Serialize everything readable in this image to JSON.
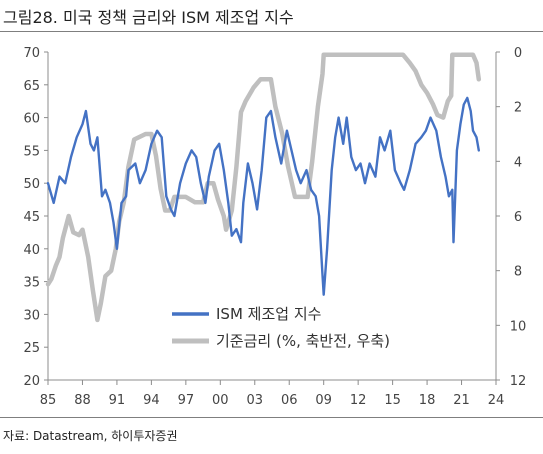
{
  "title": "그림28. 미국 정책 금리와 ISM 제조업 지수",
  "source": "자료: Datastream, 하이투자증권",
  "chart_data": {
    "type": "line",
    "title": "그림28. 미국 정책 금리와 ISM 제조업 지수",
    "x_tick_labels": [
      "85",
      "88",
      "91",
      "94",
      "97",
      "00",
      "03",
      "06",
      "09",
      "12",
      "15",
      "18",
      "21",
      "24"
    ],
    "x_ticks": [
      1985,
      1988,
      1991,
      1994,
      1997,
      2000,
      2003,
      2006,
      2009,
      2012,
      2015,
      2018,
      2021,
      2024
    ],
    "xlim": [
      1985,
      2024
    ],
    "y_left": {
      "lim": [
        20,
        70
      ],
      "ticks": [
        20,
        25,
        30,
        35,
        40,
        45,
        50,
        55,
        60,
        65,
        70
      ]
    },
    "y_right": {
      "lim": [
        12,
        0
      ],
      "inverted": true,
      "ticks": [
        0,
        2,
        4,
        6,
        8,
        10,
        12
      ]
    },
    "legend_position": "center",
    "colors": {
      "ism": "#4472c4",
      "rate": "#bfbfbf"
    },
    "series": [
      {
        "name": "ISM 제조업 지수",
        "axis": "left",
        "points": [
          [
            1985.0,
            50
          ],
          [
            1985.5,
            47
          ],
          [
            1986.0,
            51
          ],
          [
            1986.5,
            50
          ],
          [
            1987.0,
            54
          ],
          [
            1987.5,
            57
          ],
          [
            1988.0,
            59
          ],
          [
            1988.3,
            61
          ],
          [
            1988.7,
            56
          ],
          [
            1989.0,
            55
          ],
          [
            1989.3,
            57
          ],
          [
            1989.7,
            48
          ],
          [
            1990.0,
            49
          ],
          [
            1990.4,
            47
          ],
          [
            1990.7,
            44
          ],
          [
            1991.0,
            40
          ],
          [
            1991.4,
            47
          ],
          [
            1991.8,
            48
          ],
          [
            1992.0,
            52
          ],
          [
            1992.6,
            53
          ],
          [
            1993.0,
            50
          ],
          [
            1993.5,
            52
          ],
          [
            1994.0,
            56
          ],
          [
            1994.5,
            58
          ],
          [
            1994.9,
            57
          ],
          [
            1995.3,
            48
          ],
          [
            1995.7,
            46
          ],
          [
            1996.0,
            45
          ],
          [
            1996.5,
            50
          ],
          [
            1997.0,
            53
          ],
          [
            1997.5,
            55
          ],
          [
            1997.9,
            54
          ],
          [
            1998.3,
            50
          ],
          [
            1998.7,
            47
          ],
          [
            1999.0,
            51
          ],
          [
            1999.5,
            55
          ],
          [
            1999.9,
            56
          ],
          [
            2000.3,
            52
          ],
          [
            2000.7,
            47
          ],
          [
            2001.0,
            42
          ],
          [
            2001.4,
            43
          ],
          [
            2001.8,
            41
          ],
          [
            2002.0,
            47
          ],
          [
            2002.4,
            53
          ],
          [
            2002.8,
            50
          ],
          [
            2003.2,
            46
          ],
          [
            2003.6,
            52
          ],
          [
            2004.0,
            60
          ],
          [
            2004.4,
            61
          ],
          [
            2004.8,
            57
          ],
          [
            2005.3,
            53
          ],
          [
            2005.8,
            58
          ],
          [
            2006.2,
            55
          ],
          [
            2006.6,
            52
          ],
          [
            2007.0,
            50
          ],
          [
            2007.5,
            52
          ],
          [
            2007.9,
            49
          ],
          [
            2008.3,
            48
          ],
          [
            2008.6,
            45
          ],
          [
            2008.9,
            36
          ],
          [
            2009.0,
            33
          ],
          [
            2009.3,
            40
          ],
          [
            2009.7,
            52
          ],
          [
            2010.0,
            57
          ],
          [
            2010.3,
            60
          ],
          [
            2010.7,
            56
          ],
          [
            2011.0,
            60
          ],
          [
            2011.4,
            54
          ],
          [
            2011.8,
            52
          ],
          [
            2012.2,
            53
          ],
          [
            2012.6,
            50
          ],
          [
            2013.0,
            53
          ],
          [
            2013.5,
            51
          ],
          [
            2013.9,
            57
          ],
          [
            2014.3,
            55
          ],
          [
            2014.8,
            58
          ],
          [
            2015.2,
            52
          ],
          [
            2015.7,
            50
          ],
          [
            2016.0,
            49
          ],
          [
            2016.5,
            52
          ],
          [
            2017.0,
            56
          ],
          [
            2017.5,
            57
          ],
          [
            2017.9,
            58
          ],
          [
            2018.3,
            60
          ],
          [
            2018.8,
            58
          ],
          [
            2019.2,
            54
          ],
          [
            2019.6,
            51
          ],
          [
            2019.9,
            48
          ],
          [
            2020.2,
            49
          ],
          [
            2020.3,
            41
          ],
          [
            2020.6,
            55
          ],
          [
            2020.9,
            59
          ],
          [
            2021.2,
            62
          ],
          [
            2021.5,
            63
          ],
          [
            2021.8,
            61
          ],
          [
            2022.0,
            58
          ],
          [
            2022.3,
            57
          ],
          [
            2022.5,
            55
          ]
        ]
      },
      {
        "name": "기준금리 (%, 축반전, 우축)",
        "axis": "right",
        "points": [
          [
            1985.0,
            8.5
          ],
          [
            1985.3,
            8.3
          ],
          [
            1985.7,
            7.8
          ],
          [
            1986.0,
            7.5
          ],
          [
            1986.3,
            6.8
          ],
          [
            1986.8,
            6.0
          ],
          [
            1987.2,
            6.6
          ],
          [
            1987.7,
            6.7
          ],
          [
            1988.0,
            6.5
          ],
          [
            1988.5,
            7.5
          ],
          [
            1988.9,
            8.7
          ],
          [
            1989.3,
            9.8
          ],
          [
            1989.6,
            9.2
          ],
          [
            1990.0,
            8.2
          ],
          [
            1990.5,
            8.0
          ],
          [
            1990.9,
            7.2
          ],
          [
            1991.2,
            6.2
          ],
          [
            1991.6,
            5.5
          ],
          [
            1992.0,
            4.2
          ],
          [
            1992.5,
            3.2
          ],
          [
            1993.5,
            3.0
          ],
          [
            1994.0,
            3.0
          ],
          [
            1994.4,
            3.8
          ],
          [
            1994.8,
            5.0
          ],
          [
            1995.2,
            5.8
          ],
          [
            1995.6,
            5.8
          ],
          [
            1996.0,
            5.3
          ],
          [
            1996.5,
            5.3
          ],
          [
            1997.0,
            5.3
          ],
          [
            1997.8,
            5.5
          ],
          [
            1998.5,
            5.5
          ],
          [
            1998.9,
            4.8
          ],
          [
            1999.4,
            4.8
          ],
          [
            1999.8,
            5.4
          ],
          [
            2000.3,
            6.0
          ],
          [
            2000.5,
            6.5
          ],
          [
            2001.0,
            5.8
          ],
          [
            2001.4,
            4.2
          ],
          [
            2001.8,
            2.2
          ],
          [
            2002.2,
            1.8
          ],
          [
            2002.9,
            1.3
          ],
          [
            2003.5,
            1.0
          ],
          [
            2004.4,
            1.0
          ],
          [
            2004.8,
            2.0
          ],
          [
            2005.4,
            3.0
          ],
          [
            2005.9,
            4.2
          ],
          [
            2006.5,
            5.3
          ],
          [
            2007.6,
            5.3
          ],
          [
            2008.0,
            4.0
          ],
          [
            2008.5,
            2.0
          ],
          [
            2008.9,
            0.8
          ],
          [
            2009.0,
            0.1
          ],
          [
            2015.9,
            0.1
          ],
          [
            2016.5,
            0.4
          ],
          [
            2017.0,
            0.7
          ],
          [
            2017.5,
            1.2
          ],
          [
            2018.0,
            1.5
          ],
          [
            2018.5,
            1.9
          ],
          [
            2018.9,
            2.3
          ],
          [
            2019.4,
            2.4
          ],
          [
            2019.8,
            1.8
          ],
          [
            2020.1,
            1.6
          ],
          [
            2020.2,
            0.1
          ],
          [
            2022.0,
            0.1
          ],
          [
            2022.3,
            0.4
          ],
          [
            2022.5,
            1.0
          ]
        ]
      }
    ]
  }
}
